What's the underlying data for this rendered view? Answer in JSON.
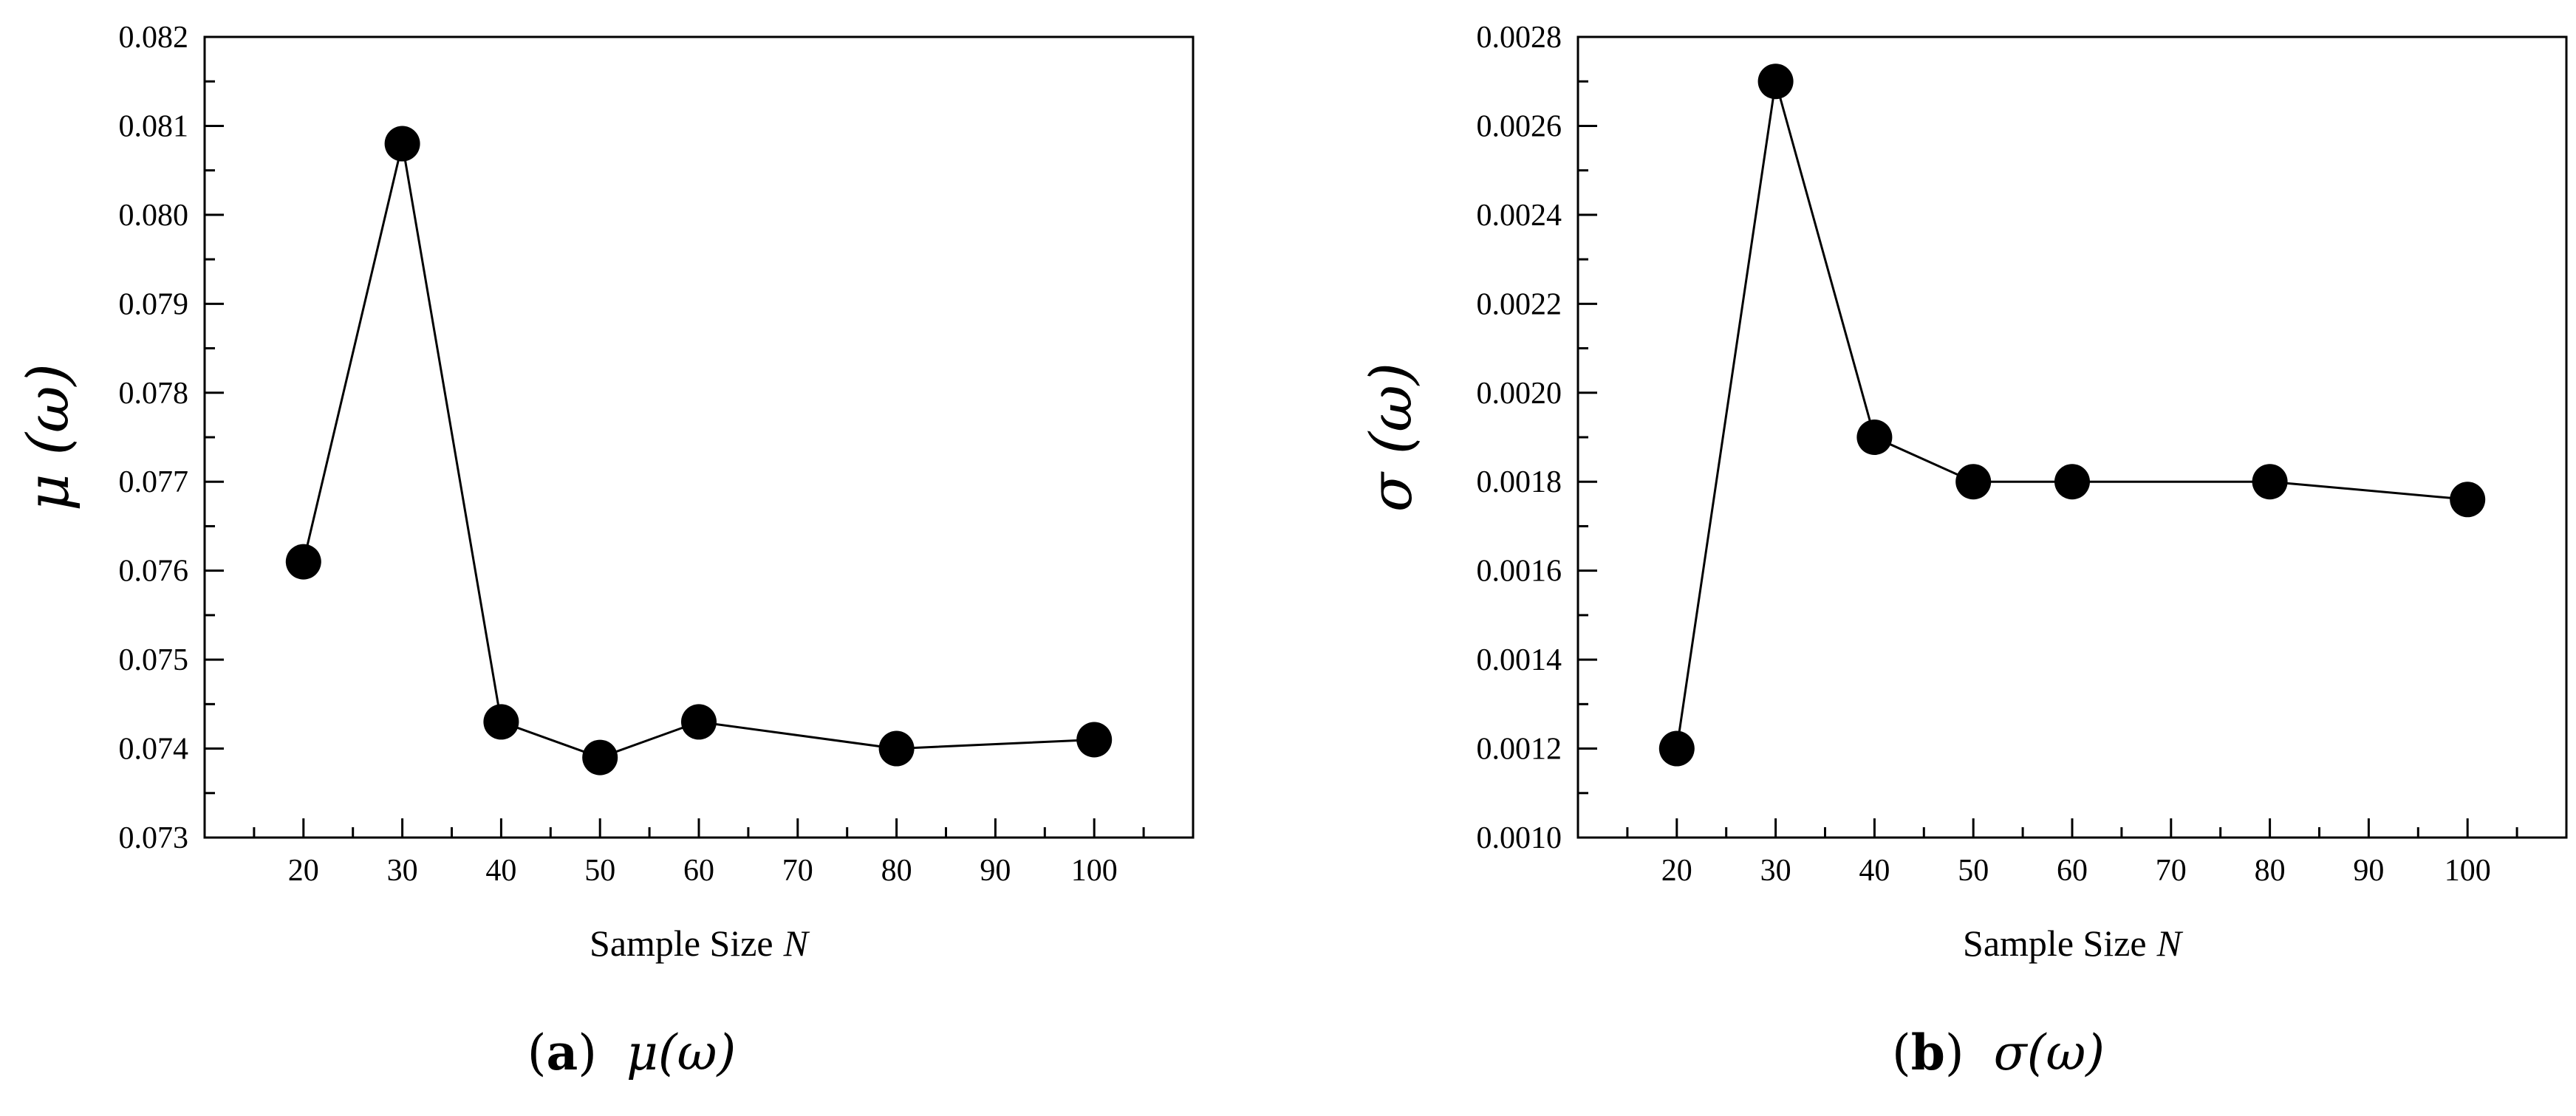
{
  "chart_data": [
    {
      "type": "line",
      "title": "",
      "xlabel": "Sample Size",
      "xlabel_var": "N",
      "ylabel": "μ (ω)",
      "caption_tag": "(a)",
      "caption_tag_letter": "a",
      "caption_expr": "μ(ω)",
      "xlim": [
        10,
        110
      ],
      "ylim": [
        0.073,
        0.082
      ],
      "xticks": [
        20,
        30,
        40,
        50,
        60,
        70,
        80,
        90,
        100
      ],
      "xtick_labels": [
        "20",
        "30",
        "40",
        "50",
        "60",
        "70",
        "80",
        "90",
        "100"
      ],
      "yticks": [
        0.073,
        0.074,
        0.075,
        0.076,
        0.077,
        0.078,
        0.079,
        0.08,
        0.081,
        0.082
      ],
      "ytick_labels": [
        "0.073",
        "0.074",
        "0.075",
        "0.076",
        "0.077",
        "0.078",
        "0.079",
        "0.080",
        "0.081",
        "0.082"
      ],
      "grid": false,
      "x": [
        20,
        30,
        40,
        50,
        60,
        80,
        100
      ],
      "y": [
        0.0761,
        0.0808,
        0.0743,
        0.0739,
        0.0743,
        0.074,
        0.0741
      ]
    },
    {
      "type": "line",
      "title": "",
      "xlabel": "Sample Size",
      "xlabel_var": "N",
      "ylabel": "σ (ω)",
      "caption_tag": "(b)",
      "caption_tag_letter": "b",
      "caption_expr": "σ(ω)",
      "xlim": [
        10,
        110
      ],
      "ylim": [
        0.001,
        0.0028
      ],
      "xticks": [
        20,
        30,
        40,
        50,
        60,
        70,
        80,
        90,
        100
      ],
      "xtick_labels": [
        "20",
        "30",
        "40",
        "50",
        "60",
        "70",
        "80",
        "90",
        "100"
      ],
      "yticks": [
        0.001,
        0.0012,
        0.0014,
        0.0016,
        0.0018,
        0.002,
        0.0022,
        0.0024,
        0.0026,
        0.0028
      ],
      "ytick_labels": [
        "0.0010",
        "0.0012",
        "0.0014",
        "0.0016",
        "0.0018",
        "0.0020",
        "0.0022",
        "0.0024",
        "0.0026",
        "0.0028"
      ],
      "grid": false,
      "x": [
        20,
        30,
        40,
        50,
        60,
        80,
        100
      ],
      "y": [
        0.0012,
        0.0027,
        0.0019,
        0.0018,
        0.0018,
        0.0018,
        0.00176
      ]
    }
  ]
}
